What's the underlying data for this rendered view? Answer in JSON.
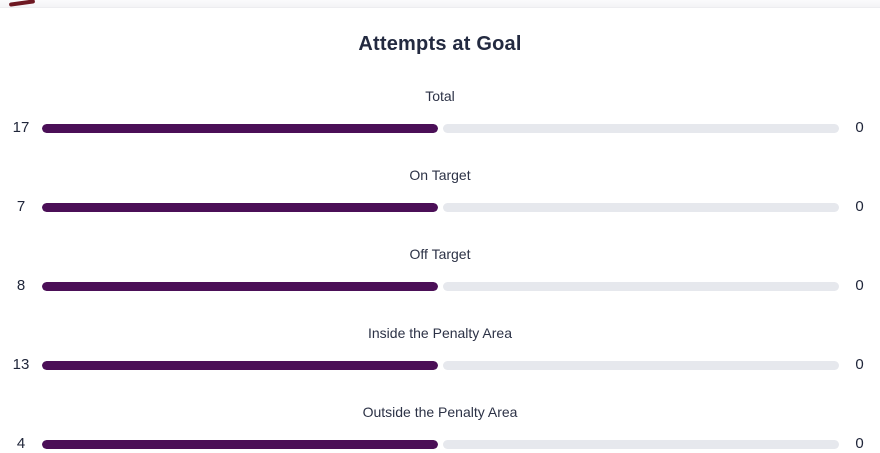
{
  "header": {
    "title": "Attempts at Goal"
  },
  "colors": {
    "home_bar": "#4b0f57",
    "track": "#e6e8ed",
    "title_text": "#232a40",
    "label_text": "#2c3246",
    "value_text": "#20263a",
    "corner_mark": "#6e1822"
  },
  "rows": [
    {
      "label": "Total",
      "left_value": "17",
      "right_value": "0",
      "home_pct": 100,
      "away_pct": 0
    },
    {
      "label": "On Target",
      "left_value": "7",
      "right_value": "0",
      "home_pct": 100,
      "away_pct": 0
    },
    {
      "label": "Off Target",
      "left_value": "8",
      "right_value": "0",
      "home_pct": 100,
      "away_pct": 0
    },
    {
      "label": "Inside the Penalty Area",
      "left_value": "13",
      "right_value": "0",
      "home_pct": 100,
      "away_pct": 0
    },
    {
      "label": "Outside the Penalty Area",
      "left_value": "4",
      "right_value": "0",
      "home_pct": 100,
      "away_pct": 0
    }
  ],
  "chart_data": {
    "type": "bar",
    "orientation": "horizontal-comparison",
    "title": "Attempts at Goal",
    "categories": [
      "Total",
      "On Target",
      "Off Target",
      "Inside the Penalty Area",
      "Outside the Penalty Area"
    ],
    "series": [
      {
        "name": "home",
        "color": "#4b0f57",
        "values": [
          17,
          7,
          8,
          13,
          4
        ]
      },
      {
        "name": "away",
        "color": "#e6e8ed",
        "values": [
          0,
          0,
          0,
          0,
          0
        ]
      }
    ],
    "legend": "none",
    "value_labels": "both-ends",
    "grid": false
  }
}
